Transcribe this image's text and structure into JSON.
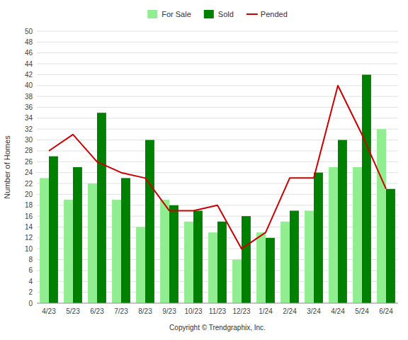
{
  "chart_data": {
    "type": "bar",
    "categories": [
      "4/23",
      "5/23",
      "6/23",
      "7/23",
      "8/23",
      "9/23",
      "10/23",
      "11/23",
      "12/23",
      "1/24",
      "2/24",
      "3/24",
      "4/24",
      "5/24",
      "6/24"
    ],
    "series": [
      {
        "name": "For Sale",
        "color": "#90EE90",
        "values": [
          23,
          19,
          22,
          19,
          14,
          19,
          15,
          13,
          8,
          13,
          15,
          17,
          25,
          25,
          32
        ]
      },
      {
        "name": "Sold",
        "color": "#008000",
        "values": [
          27,
          25,
          35,
          23,
          30,
          18,
          17,
          15,
          16,
          12,
          17,
          24,
          30,
          42,
          21
        ]
      },
      {
        "name": "Pended",
        "type": "line",
        "color": "#cc0000",
        "values": [
          28,
          31,
          26,
          24,
          23,
          17,
          17,
          18,
          10,
          13,
          23,
          23,
          40,
          31,
          21
        ]
      }
    ],
    "ylabel": "Number of Homes",
    "xlabel": "Copyright © Trendgraphix, Inc.",
    "ylim": [
      0,
      50
    ],
    "yticks": [
      0,
      2,
      4,
      6,
      8,
      10,
      12,
      14,
      16,
      18,
      20,
      22,
      24,
      26,
      28,
      30,
      32,
      34,
      36,
      38,
      40,
      42,
      44,
      46,
      48,
      50
    ],
    "grid": true,
    "legend": "top"
  }
}
